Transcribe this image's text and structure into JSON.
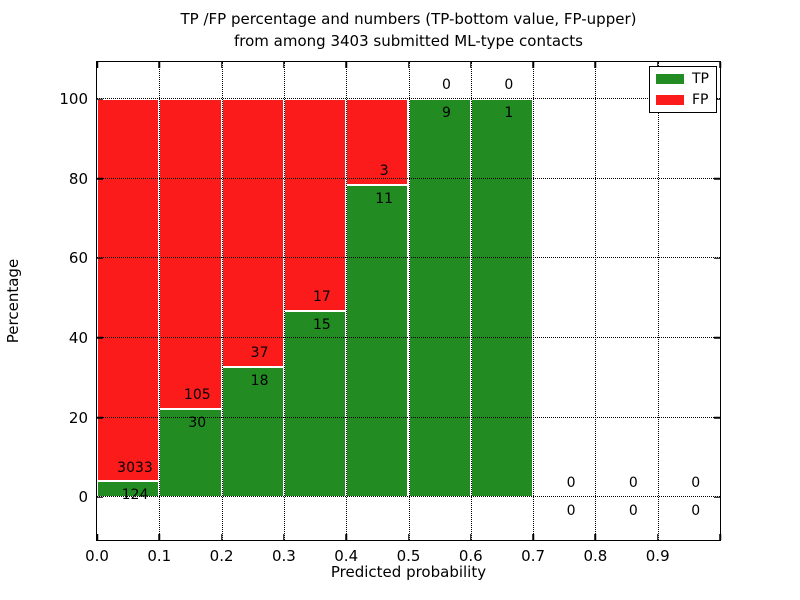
{
  "chart_data": {
    "type": "bar",
    "stacked": true,
    "normalized_to_percent": true,
    "title": "TP /FP percentage and numbers (TP-bottom value, FP-upper)",
    "subtitle": "from among 3403 submitted ML-type contacts",
    "xlabel": "Predicted probability",
    "ylabel": "Percentage",
    "xlim": [
      0.0,
      1.0
    ],
    "ylim": [
      -10.8,
      109.4
    ],
    "xticks": [
      "0.0",
      "0.1",
      "0.2",
      "0.3",
      "0.4",
      "0.5",
      "0.6",
      "0.7",
      "0.8",
      "0.9"
    ],
    "yticks": [
      0,
      20,
      40,
      60,
      80,
      100
    ],
    "xgridlines": [
      0.1,
      0.2,
      0.3,
      0.4,
      0.5,
      0.6,
      0.7,
      0.8,
      0.9
    ],
    "grid_style": "dotted",
    "bin_width": 0.1,
    "bins": [
      {
        "range_start": 0.0,
        "range_end": 0.1,
        "tp": 124,
        "fp": 3033,
        "tp_pct": 3.93
      },
      {
        "range_start": 0.1,
        "range_end": 0.2,
        "tp": 30,
        "fp": 105,
        "tp_pct": 22.22
      },
      {
        "range_start": 0.2,
        "range_end": 0.3,
        "tp": 18,
        "fp": 37,
        "tp_pct": 32.73
      },
      {
        "range_start": 0.3,
        "range_end": 0.4,
        "tp": 15,
        "fp": 17,
        "tp_pct": 46.88
      },
      {
        "range_start": 0.4,
        "range_end": 0.5,
        "tp": 11,
        "fp": 3,
        "tp_pct": 78.57
      },
      {
        "range_start": 0.5,
        "range_end": 0.6,
        "tp": 9,
        "fp": 0,
        "tp_pct": 100
      },
      {
        "range_start": 0.6,
        "range_end": 0.7,
        "tp": 1,
        "fp": 0,
        "tp_pct": 100
      },
      {
        "range_start": 0.7,
        "range_end": 0.8,
        "tp": 0,
        "fp": 0,
        "tp_pct": null
      },
      {
        "range_start": 0.8,
        "range_end": 0.9,
        "tp": 0,
        "fp": 0,
        "tp_pct": null
      },
      {
        "range_start": 0.9,
        "range_end": 1.0,
        "tp": 0,
        "fp": 0,
        "tp_pct": null
      }
    ],
    "legend": {
      "position": "upper-right",
      "items": [
        {
          "label": "TP",
          "color": "#228b22"
        },
        {
          "label": "FP",
          "color": "#fb1b1b"
        }
      ]
    },
    "colors": {
      "tp": "#228b22",
      "fp": "#fb1b1b",
      "annotation": "#000000",
      "background": "#ffffff",
      "axes": "#000000"
    }
  }
}
